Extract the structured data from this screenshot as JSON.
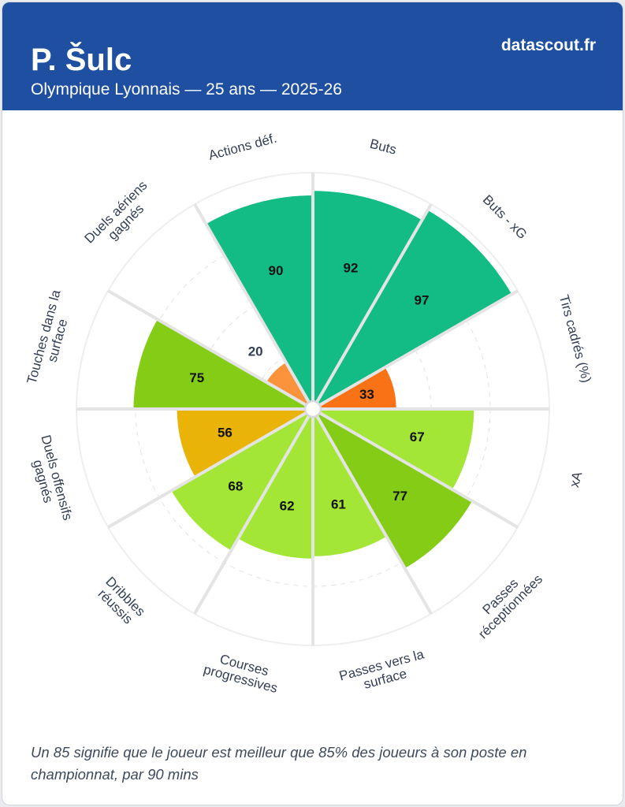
{
  "header": {
    "player_name": "P. Šulc",
    "subtitle": "Olympique Lyonnais — 25 ans — 2025-26",
    "brand": "datascout.fr"
  },
  "footnote": "Un 85 signifie que le joueur est meilleur que 85% des joueurs à son poste en championnat, par 90 mins",
  "colors": {
    "header_bg": "#1e4fa0",
    "very_high": "#13bb85",
    "high": "#84cc16",
    "good": "#a3e635",
    "average": "#eab308",
    "low": "#f97316",
    "very_low": "#fb923c"
  },
  "chart_data": {
    "type": "polar-bar",
    "range": [
      0,
      100
    ],
    "categories": [
      [
        "Buts"
      ],
      [
        "Buts - xG"
      ],
      [
        "Tirs cadrés (%)"
      ],
      [
        "xA"
      ],
      [
        "Passes",
        "réceptionnées"
      ],
      [
        "Passes vers la",
        "surface"
      ],
      [
        "Courses",
        "progressives"
      ],
      [
        "Dribbles",
        "réussis"
      ],
      [
        "Duels offensifs",
        "gagnés"
      ],
      [
        "Touches dans la",
        "surface"
      ],
      [
        "Duels aériens",
        "gagnés"
      ],
      [
        "Actions déf."
      ]
    ],
    "values": [
      92,
      97,
      33,
      67,
      77,
      61,
      62,
      68,
      56,
      75,
      20,
      90
    ],
    "bar_colors": [
      "#13bb85",
      "#13bb85",
      "#f97316",
      "#a3e635",
      "#84cc16",
      "#a3e635",
      "#a3e635",
      "#a3e635",
      "#eab308",
      "#84cc16",
      "#fb923c",
      "#13bb85"
    ]
  }
}
